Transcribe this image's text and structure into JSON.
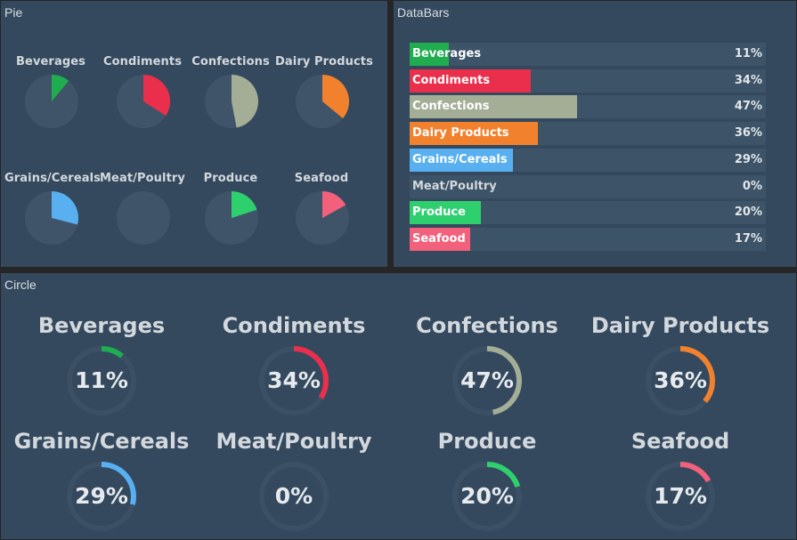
{
  "panels": {
    "pie_title": "Pie",
    "databars_title": "DataBars",
    "circle_title": "Circle"
  },
  "colors": {
    "panel_bg": "#34495e",
    "track": "#3f5468",
    "ring_track": "#3b5064"
  },
  "categories": [
    {
      "label": "Beverages",
      "value": 11,
      "pct_text": "11%",
      "color": "#1fad4f"
    },
    {
      "label": "Condiments",
      "value": 34,
      "pct_text": "34%",
      "color": "#ea2f4c"
    },
    {
      "label": "Confections",
      "value": 47,
      "pct_text": "47%",
      "color": "#a4ae96"
    },
    {
      "label": "Dairy Products",
      "value": 36,
      "pct_text": "36%",
      "color": "#f2812d"
    },
    {
      "label": "Grains/Cereals",
      "value": 29,
      "pct_text": "29%",
      "color": "#58b0f0"
    },
    {
      "label": "Meat/Poultry",
      "value": 0,
      "pct_text": "0%",
      "color": "#9b59b6"
    },
    {
      "label": "Produce",
      "value": 20,
      "pct_text": "20%",
      "color": "#2ed06e"
    },
    {
      "label": "Seafood",
      "value": 17,
      "pct_text": "17%",
      "color": "#f2607c"
    }
  ]
}
